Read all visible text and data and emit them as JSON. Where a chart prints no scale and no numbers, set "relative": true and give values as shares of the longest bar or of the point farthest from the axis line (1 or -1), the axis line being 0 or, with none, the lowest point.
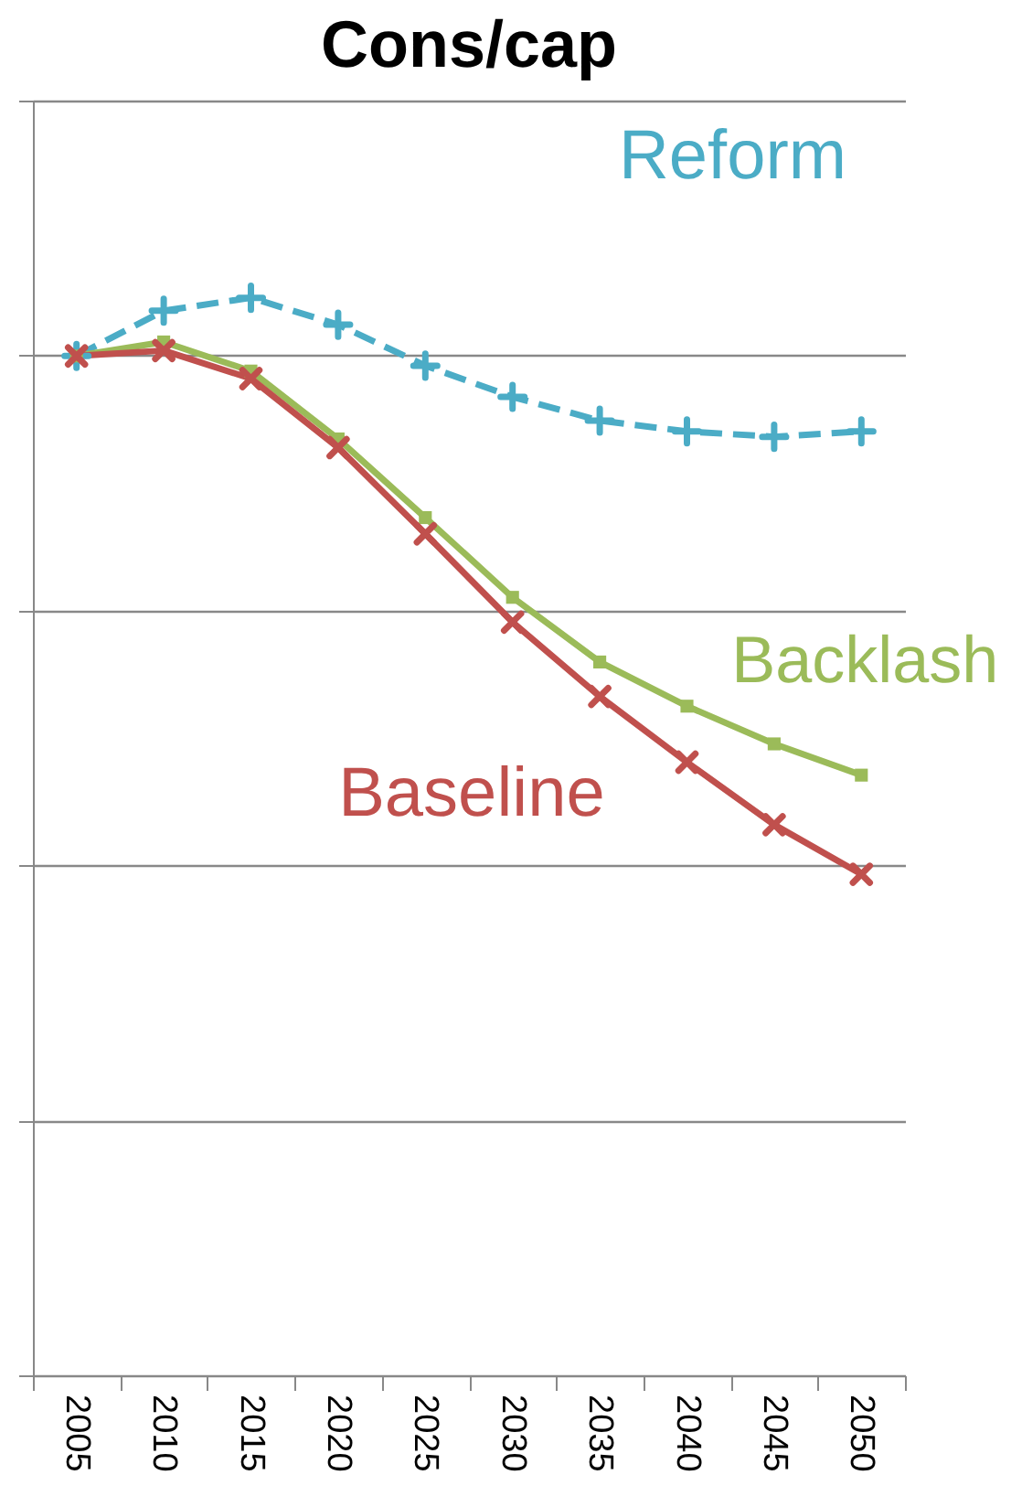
{
  "chart_data": {
    "type": "line",
    "title": "Cons/cap",
    "relative": true,
    "grid": "y",
    "legend": false,
    "categories": [
      "2005",
      "2010",
      "2015",
      "2020",
      "2025",
      "2030",
      "2035",
      "2040",
      "2045",
      "2050"
    ],
    "series": [
      {
        "name": "Reform",
        "color": "#4bacc6",
        "line_style": "dashed",
        "marker": "cross",
        "values": [
          0.946,
          0.988,
          1.0,
          0.975,
          0.937,
          0.908,
          0.886,
          0.876,
          0.871,
          0.876
        ]
      },
      {
        "name": "Backlash",
        "color": "#9bbb59",
        "line_style": "solid",
        "marker": "square",
        "values": [
          0.946,
          0.959,
          0.932,
          0.869,
          0.796,
          0.722,
          0.662,
          0.621,
          0.586,
          0.557
        ]
      },
      {
        "name": "Baseline",
        "color": "#c0504d",
        "line_style": "solid",
        "marker": "cross",
        "values": [
          0.946,
          0.951,
          0.925,
          0.861,
          0.781,
          0.699,
          0.63,
          0.569,
          0.511,
          0.465
        ]
      }
    ]
  }
}
